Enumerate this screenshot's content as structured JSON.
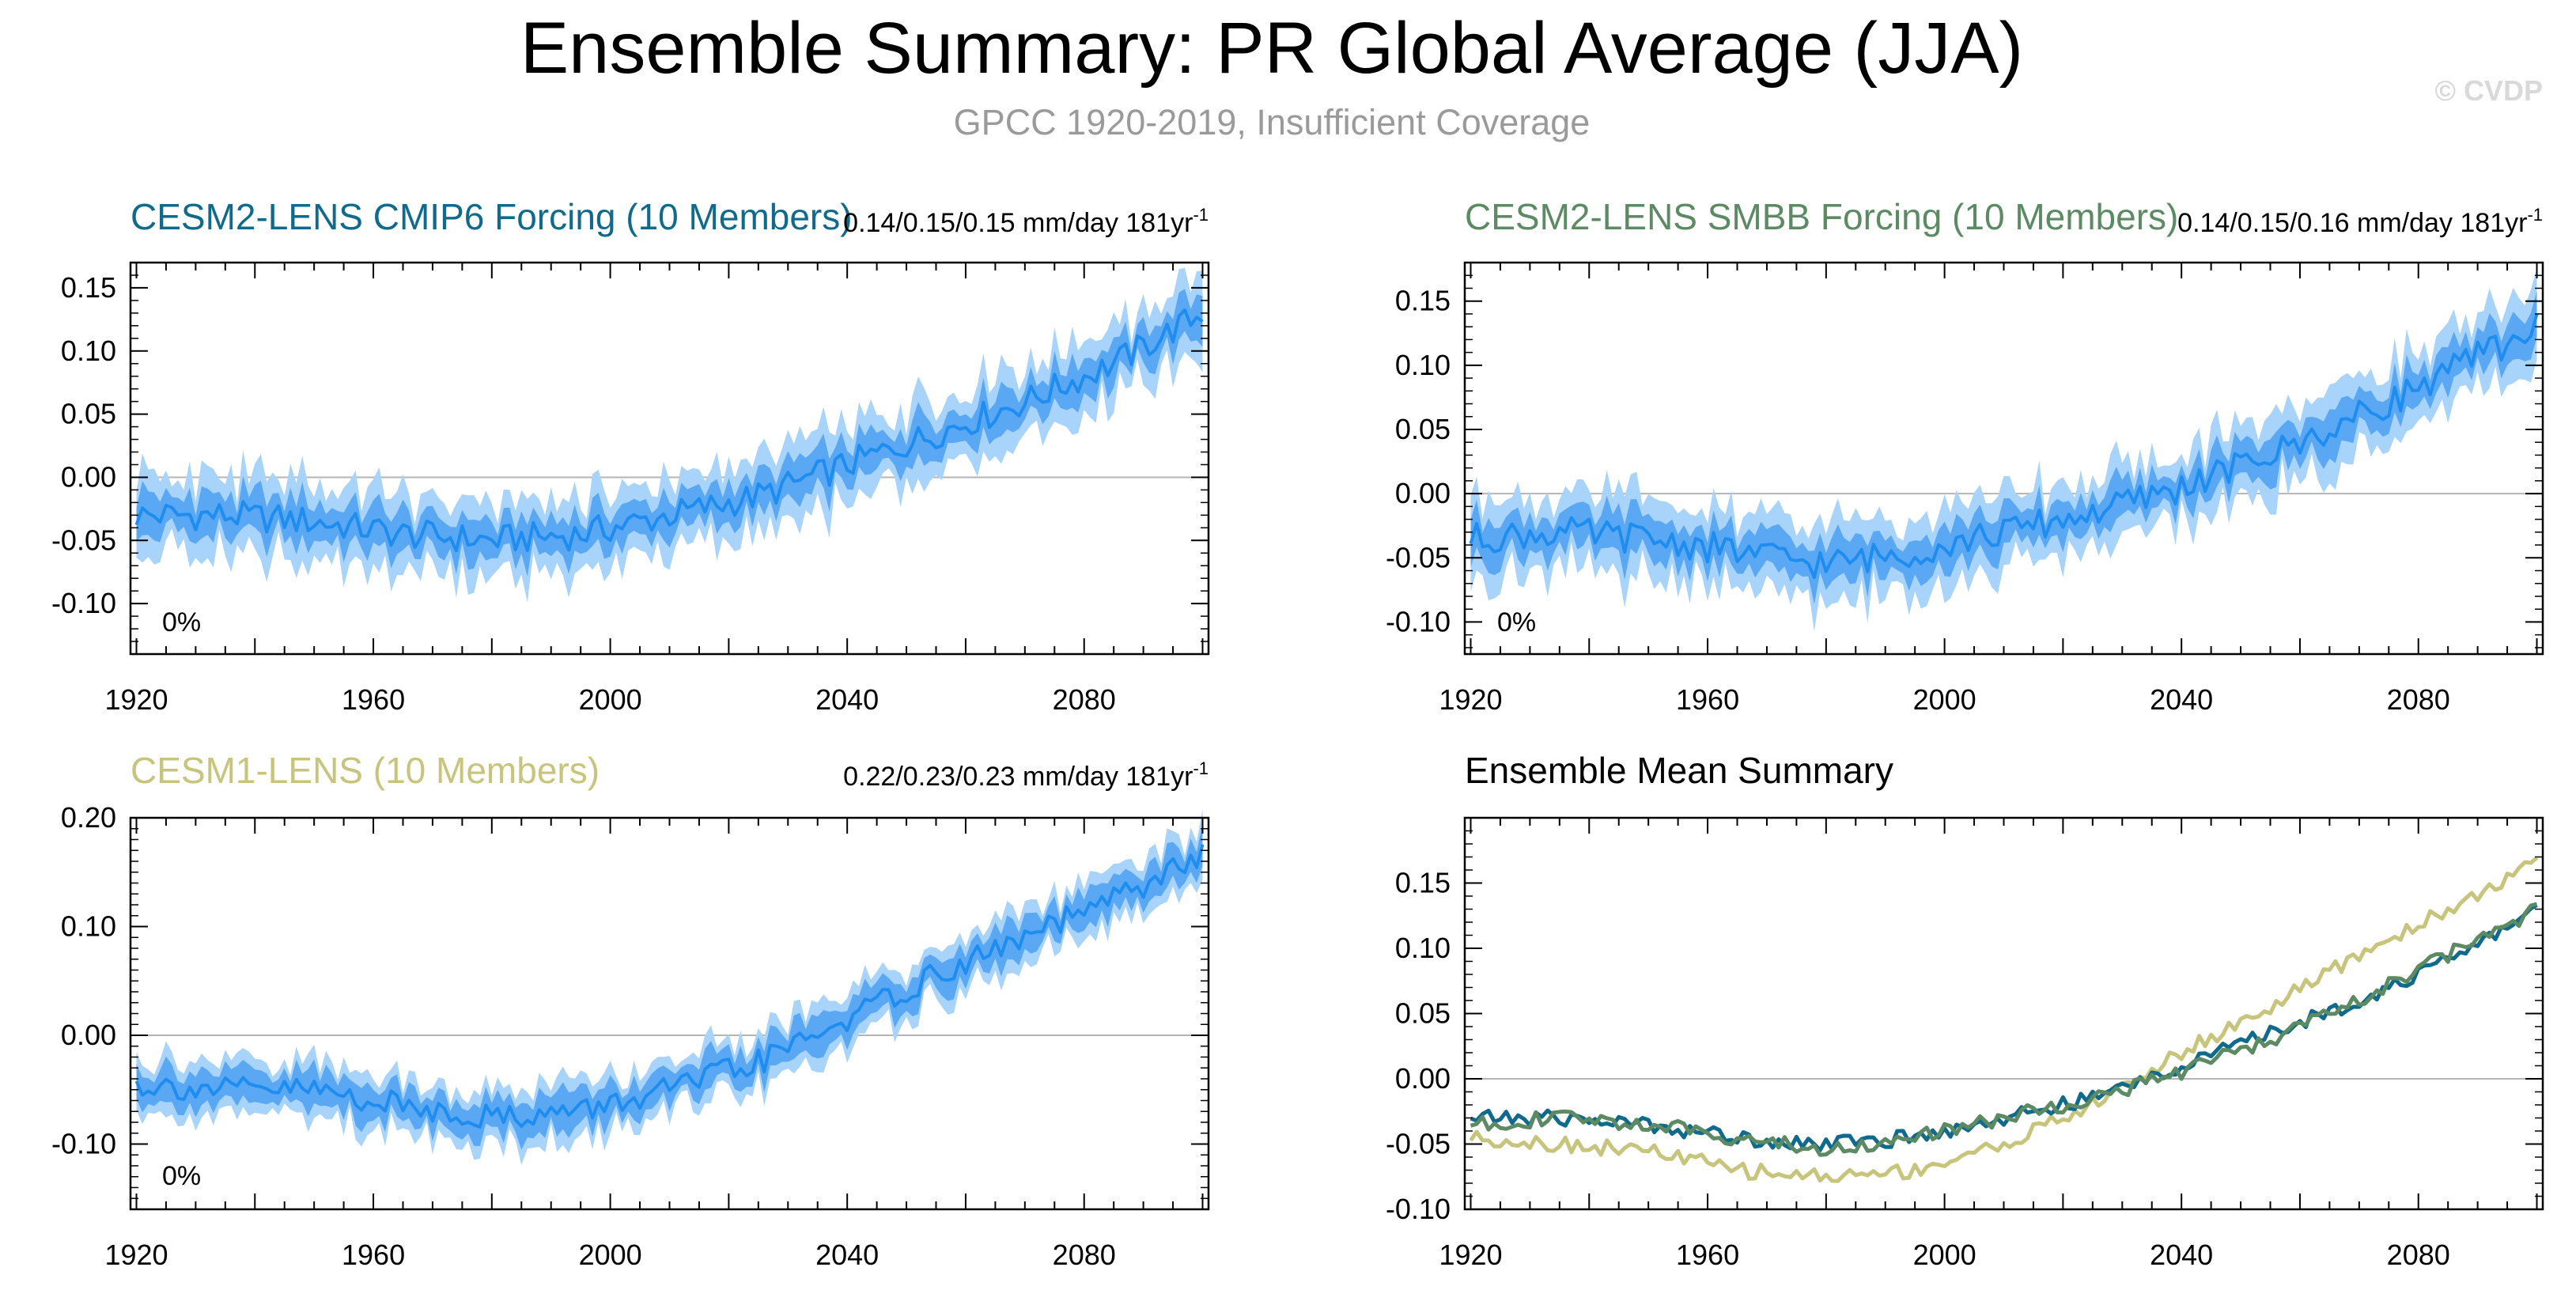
{
  "title": "Ensemble Summary: PR Global Average (JJA)",
  "subtitle": "GPCC 1920-2019, Insufficient Coverage",
  "watermark": "© CVDP",
  "colors": {
    "band_outer": "#a8d3fb",
    "band_inner": "#5aa8f3",
    "mean_line": "#1f8df0",
    "zero_line": "#b4b4b4",
    "title_cmip6": "#0f6a8c",
    "title_smbb": "#5b8a63",
    "title_lens1": "#c7c47b",
    "axis": "#000000",
    "subtitle": "#9a9a9a",
    "watermark": "#d9d9d9"
  },
  "chart_data": [
    {
      "type": "area",
      "key": "cmip6",
      "title": "CESM2-LENS CMIP6 Forcing (10 Members)",
      "stats": "0.14/0.15/0.15 mm/day 181yr",
      "stats_sup": "-1",
      "coverage_label": "0%",
      "xlim": [
        1919,
        2101
      ],
      "ylim": [
        -0.14,
        0.17
      ],
      "xticks": [
        "1920",
        "1960",
        "2000",
        "2040",
        "2080"
      ],
      "yticks": [
        "0.15",
        "0.10",
        "0.05",
        "0.00",
        "-0.05",
        "-0.10"
      ],
      "series": [
        {
          "name": "ensemble mean",
          "x": [
            1920,
            1935,
            1950,
            1965,
            1980,
            1995,
            2010,
            2025,
            2040,
            2055,
            2070,
            2085,
            2100
          ],
          "values": [
            -0.03,
            -0.03,
            -0.035,
            -0.045,
            -0.05,
            -0.045,
            -0.03,
            -0.015,
            0.01,
            0.035,
            0.06,
            0.09,
            0.13
          ],
          "spread_inner": [
            0.015,
            0.015,
            0.015,
            0.015,
            0.015,
            0.015,
            0.015,
            0.015,
            0.015,
            0.015,
            0.015,
            0.015,
            0.015
          ],
          "spread_outer": [
            0.03,
            0.03,
            0.03,
            0.03,
            0.03,
            0.03,
            0.03,
            0.03,
            0.03,
            0.03,
            0.03,
            0.03,
            0.03
          ]
        }
      ]
    },
    {
      "type": "area",
      "key": "smbb",
      "title": "CESM2-LENS SMBB Forcing (10 Members)",
      "stats": "0.14/0.15/0.16 mm/day 181yr",
      "stats_sup": "-1",
      "coverage_label": "0%",
      "xlim": [
        1919,
        2101
      ],
      "ylim": [
        -0.125,
        0.18
      ],
      "xticks": [
        "1920",
        "1960",
        "2000",
        "2040",
        "2080"
      ],
      "yticks": [
        "0.15",
        "0.10",
        "0.05",
        "0.00",
        "-0.05",
        "-0.10"
      ],
      "series": [
        {
          "name": "ensemble mean",
          "x": [
            1920,
            1935,
            1950,
            1965,
            1980,
            1995,
            2010,
            2025,
            2040,
            2055,
            2070,
            2085,
            2100
          ],
          "values": [
            -0.035,
            -0.03,
            -0.035,
            -0.045,
            -0.055,
            -0.045,
            -0.03,
            -0.015,
            0.005,
            0.03,
            0.06,
            0.095,
            0.13
          ],
          "spread_inner": [
            0.015,
            0.015,
            0.015,
            0.015,
            0.015,
            0.015,
            0.015,
            0.015,
            0.015,
            0.015,
            0.015,
            0.015,
            0.015
          ],
          "spread_outer": [
            0.03,
            0.03,
            0.03,
            0.03,
            0.03,
            0.03,
            0.03,
            0.03,
            0.03,
            0.03,
            0.03,
            0.03,
            0.03
          ]
        }
      ]
    },
    {
      "type": "area",
      "key": "lens1",
      "title": "CESM1-LENS (10 Members)",
      "stats": "0.22/0.23/0.23 mm/day 181yr",
      "stats_sup": "-1",
      "coverage_label": "0%",
      "xlim": [
        1919,
        2101
      ],
      "ylim": [
        -0.16,
        0.2
      ],
      "xticks": [
        "1920",
        "1960",
        "2000",
        "2040",
        "2080"
      ],
      "yticks": [
        "0.20",
        "0.10",
        "0.00",
        "-0.10"
      ],
      "series": [
        {
          "name": "ensemble mean",
          "x": [
            1920,
            1935,
            1950,
            1965,
            1980,
            1995,
            2010,
            2025,
            2040,
            2055,
            2070,
            2085,
            2100
          ],
          "values": [
            -0.045,
            -0.05,
            -0.05,
            -0.065,
            -0.075,
            -0.07,
            -0.05,
            -0.025,
            0.015,
            0.055,
            0.09,
            0.125,
            0.165
          ],
          "spread_inner": [
            0.015,
            0.015,
            0.015,
            0.015,
            0.015,
            0.015,
            0.015,
            0.015,
            0.015,
            0.015,
            0.015,
            0.015,
            0.015
          ],
          "spread_outer": [
            0.025,
            0.025,
            0.025,
            0.025,
            0.025,
            0.025,
            0.025,
            0.025,
            0.025,
            0.025,
            0.025,
            0.025,
            0.025
          ]
        }
      ]
    },
    {
      "type": "line",
      "key": "summary",
      "title": "Ensemble Mean Summary",
      "xlim": [
        1919,
        2101
      ],
      "ylim": [
        -0.1,
        0.2
      ],
      "xticks": [
        "1920",
        "1960",
        "2000",
        "2040",
        "2080"
      ],
      "yticks": [
        "0.15",
        "0.10",
        "0.05",
        "0.00",
        "-0.05",
        "-0.10"
      ],
      "series": [
        {
          "name": "CESM1-LENS",
          "color": "#c7c47b",
          "x": [
            1920,
            1935,
            1950,
            1965,
            1980,
            1995,
            2010,
            2025,
            2040,
            2055,
            2070,
            2085,
            2100
          ],
          "values": [
            -0.045,
            -0.05,
            -0.055,
            -0.07,
            -0.075,
            -0.07,
            -0.05,
            -0.02,
            0.02,
            0.055,
            0.095,
            0.13,
            0.165
          ]
        },
        {
          "name": "CESM2-LENS CMIP6 Forcing",
          "color": "#0f6a8c",
          "x": [
            1920,
            1935,
            1950,
            1965,
            1980,
            1995,
            2010,
            2025,
            2040,
            2055,
            2070,
            2085,
            2100
          ],
          "values": [
            -0.03,
            -0.03,
            -0.035,
            -0.045,
            -0.05,
            -0.045,
            -0.03,
            -0.015,
            0.01,
            0.035,
            0.06,
            0.09,
            0.13
          ]
        },
        {
          "name": "CESM2-LENS SMBB Forcing",
          "color": "#5b8a63",
          "x": [
            1920,
            1935,
            1950,
            1965,
            1980,
            1995,
            2010,
            2025,
            2040,
            2055,
            2070,
            2085,
            2100
          ],
          "values": [
            -0.035,
            -0.03,
            -0.035,
            -0.045,
            -0.055,
            -0.045,
            -0.03,
            -0.015,
            0.005,
            0.03,
            0.06,
            0.095,
            0.13
          ]
        }
      ]
    }
  ]
}
